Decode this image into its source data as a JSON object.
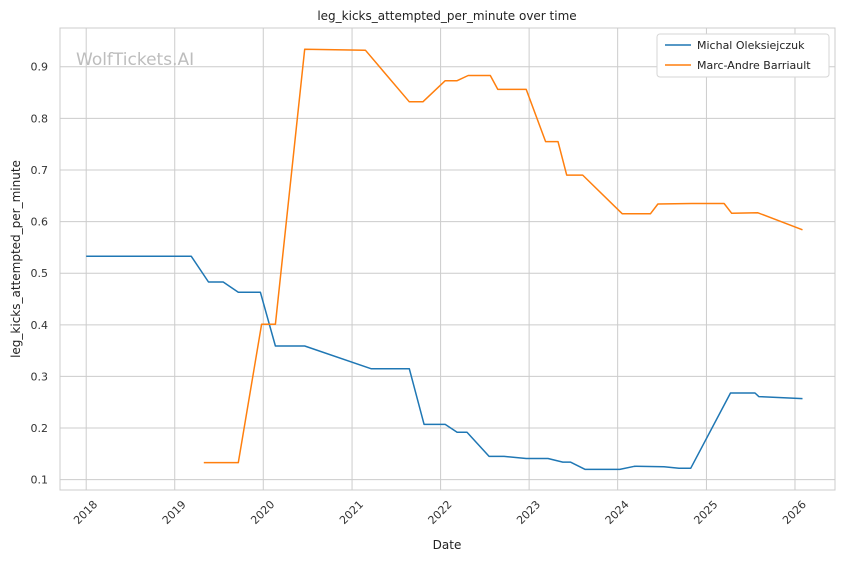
{
  "watermark": "WolfTickets.AI",
  "chart_data": {
    "type": "line",
    "title": "leg_kicks_attempted_per_minute over time",
    "xlabel": "Date",
    "ylabel": "leg_kicks_attempted_per_minute",
    "x_ticks": [
      "2018",
      "2019",
      "2020",
      "2021",
      "2022",
      "2023",
      "2024",
      "2025",
      "2026"
    ],
    "y_ticks": [
      "0.1",
      "0.2",
      "0.3",
      "0.4",
      "0.5",
      "0.6",
      "0.7",
      "0.8",
      "0.9"
    ],
    "xlim": [
      "2017-09-15",
      "2026-06-15"
    ],
    "ylim": [
      0.08,
      0.975
    ],
    "grid": true,
    "legend_position": "top-right",
    "colors": {
      "Michal Oleksiejczuk": "#1f77b4",
      "Marc-Andre Barriault": "#ff7f0e"
    },
    "series": [
      {
        "name": "Michal Oleksiejczuk",
        "points": [
          [
            "2018-01-01",
            0.533
          ],
          [
            "2019-03-10",
            0.533
          ],
          [
            "2019-05-20",
            0.483
          ],
          [
            "2019-07-20",
            0.483
          ],
          [
            "2019-09-20",
            0.463
          ],
          [
            "2019-12-20",
            0.463
          ],
          [
            "2020-02-20",
            0.359
          ],
          [
            "2020-06-20",
            0.359
          ],
          [
            "2021-03-20",
            0.315
          ],
          [
            "2021-08-25",
            0.315
          ],
          [
            "2021-10-25",
            0.207
          ],
          [
            "2022-01-20",
            0.207
          ],
          [
            "2022-03-10",
            0.192
          ],
          [
            "2022-04-20",
            0.192
          ],
          [
            "2022-07-20",
            0.145
          ],
          [
            "2022-09-20",
            0.145
          ],
          [
            "2022-12-20",
            0.141
          ],
          [
            "2023-03-20",
            0.141
          ],
          [
            "2023-05-20",
            0.134
          ],
          [
            "2023-06-20",
            0.134
          ],
          [
            "2023-08-20",
            0.12
          ],
          [
            "2024-01-10",
            0.12
          ],
          [
            "2024-03-10",
            0.126
          ],
          [
            "2024-07-10",
            0.125
          ],
          [
            "2024-09-10",
            0.122
          ],
          [
            "2024-10-28",
            0.122
          ],
          [
            "2025-04-10",
            0.268
          ],
          [
            "2025-07-20",
            0.268
          ],
          [
            "2025-08-05",
            0.261
          ],
          [
            "2026-02-01",
            0.257
          ]
        ]
      },
      {
        "name": "Marc-Andre Barriault",
        "points": [
          [
            "2019-05-01",
            0.133
          ],
          [
            "2019-09-20",
            0.133
          ],
          [
            "2019-12-25",
            0.401
          ],
          [
            "2020-02-20",
            0.401
          ],
          [
            "2020-06-20",
            0.934
          ],
          [
            "2021-02-25",
            0.932
          ],
          [
            "2021-08-25",
            0.832
          ],
          [
            "2021-10-20",
            0.832
          ],
          [
            "2022-01-20",
            0.873
          ],
          [
            "2022-03-10",
            0.873
          ],
          [
            "2022-04-25",
            0.883
          ],
          [
            "2022-07-25",
            0.883
          ],
          [
            "2022-08-25",
            0.856
          ],
          [
            "2022-12-20",
            0.856
          ],
          [
            "2023-03-10",
            0.755
          ],
          [
            "2023-04-30",
            0.755
          ],
          [
            "2023-06-05",
            0.69
          ],
          [
            "2023-08-10",
            0.69
          ],
          [
            "2024-01-20",
            0.615
          ],
          [
            "2024-05-15",
            0.615
          ],
          [
            "2024-06-15",
            0.634
          ],
          [
            "2024-11-01",
            0.635
          ],
          [
            "2025-03-15",
            0.635
          ],
          [
            "2025-04-15",
            0.616
          ],
          [
            "2025-08-01",
            0.617
          ],
          [
            "2026-02-01",
            0.584
          ]
        ]
      }
    ]
  }
}
